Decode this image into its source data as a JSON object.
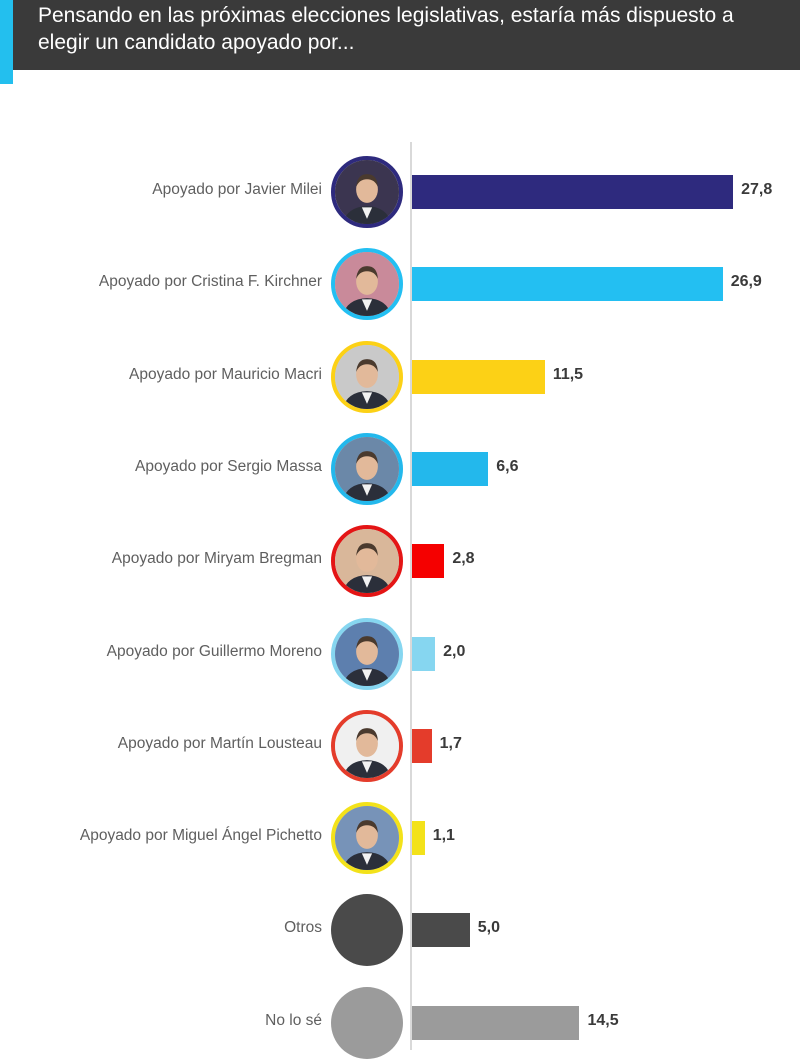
{
  "header": {
    "title": "Pensando en las próximas elecciones legislativas, estaría más dispuesto a elegir un candidato apoyado por..."
  },
  "chart_data": {
    "type": "bar",
    "orientation": "horizontal",
    "title": "Pensando en las próximas elecciones legislativas, estaría más dispuesto a elegir un candidato apoyado por...",
    "xlim": [
      0,
      28.9
    ],
    "grid": false,
    "categories": [
      "Apoyado por Javier Milei",
      "Apoyado por Cristina F. Kirchner",
      "Apoyado por Mauricio Macri",
      "Apoyado por Sergio Massa",
      "Apoyado por Miryam Bregman",
      "Apoyado por Guillermo Moreno",
      "Apoyado por Martín Lousteau",
      "Apoyado por Miguel Ángel Pichetto",
      "Otros",
      "No lo sé"
    ],
    "values": [
      27.8,
      26.9,
      11.5,
      6.6,
      2.8,
      2.0,
      1.7,
      1.1,
      5.0,
      14.5
    ],
    "value_labels": [
      "27,8",
      "26,9",
      "11,5",
      "6,6",
      "2,8",
      "2,0",
      "1,7",
      "1,1",
      "5,0",
      "14,5"
    ],
    "colors": [
      "#2e2a7e",
      "#23bff2",
      "#fcd116",
      "#23b8ec",
      "#f50000",
      "#86d6f0",
      "#e43c2b",
      "#f3e21a",
      "#4a4a4a",
      "#9b9b9b"
    ],
    "avatar_borders": [
      "#2e2a7e",
      "#23bff2",
      "#fcd116",
      "#23b8ec",
      "#e41515",
      "#86d6f0",
      "#e43c2b",
      "#f3e21a",
      null,
      null
    ],
    "avatar_fills": [
      "#3b3550",
      "#c98a9a",
      "#c9c9c9",
      "#6b88a8",
      "#d9b79a",
      "#5d7fae",
      "#f0f0f0",
      "#7793b8",
      "#4a4a4a",
      "#9b9b9b"
    ],
    "avatar_icons": [
      "portrait-icon",
      "portrait-icon",
      "portrait-icon",
      "portrait-icon",
      "portrait-icon",
      "portrait-icon",
      "portrait-icon",
      "portrait-icon",
      "gray-circle-icon",
      "gray-circle-icon"
    ]
  }
}
